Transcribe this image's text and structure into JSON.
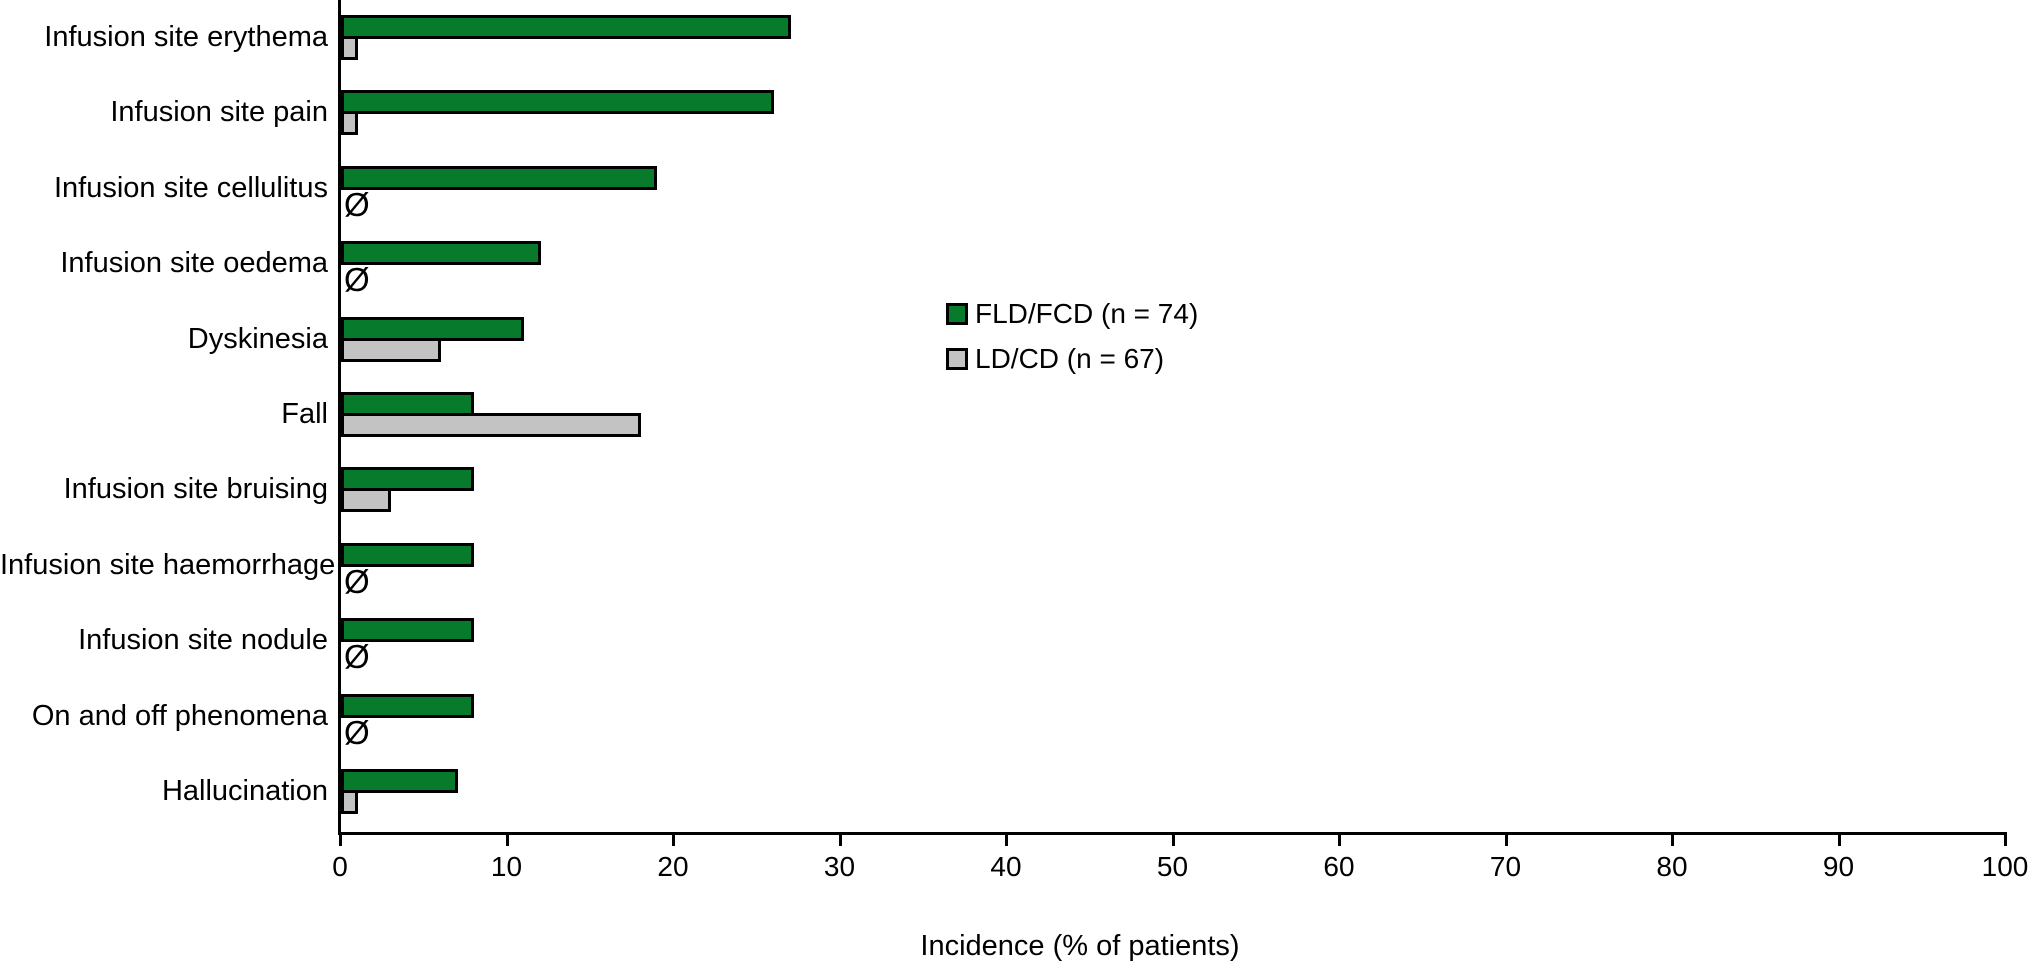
{
  "figure": {
    "background": "#ffffff",
    "zero_marker": "Ø"
  },
  "colors": {
    "fld_fcd_green": "#077a2c",
    "ld_cd_gray": "#c3c3c3",
    "bar_border": "#000000",
    "axis": "#000000",
    "text": "#000000"
  },
  "legend": {
    "items": [
      {
        "label": "FLD/FCD (n = 74)",
        "color": "#077a2c"
      },
      {
        "label": "LD/CD (n = 67)",
        "color": "#c3c3c3"
      }
    ]
  },
  "chart_data": {
    "type": "bar",
    "orientation": "horizontal",
    "title": "",
    "xlabel": "Incidence (% of patients)",
    "ylabel": "",
    "xlim": [
      0,
      100
    ],
    "xticks": [
      0,
      10,
      20,
      30,
      40,
      50,
      60,
      70,
      80,
      90,
      100
    ],
    "grid": false,
    "legend_position": "center-right",
    "zero_display": "Ø",
    "categories": [
      "Infusion site erythema",
      "Infusion site pain",
      "Infusion site cellulitus",
      "Infusion site oedema",
      "Dyskinesia",
      "Fall",
      "Infusion site bruising",
      "Infusion site haemorrhage",
      "Infusion site nodule",
      "On and off phenomena",
      "Hallucination"
    ],
    "series": [
      {
        "name": "FLD/FCD (n = 74)",
        "color": "#077a2c",
        "values": [
          27,
          26,
          19,
          12,
          11,
          8,
          8,
          8,
          8,
          8,
          7
        ]
      },
      {
        "name": "LD/CD (n = 67)",
        "color": "#c3c3c3",
        "values": [
          1,
          1,
          0,
          0,
          6,
          18,
          3,
          0,
          0,
          0,
          1
        ]
      }
    ]
  }
}
